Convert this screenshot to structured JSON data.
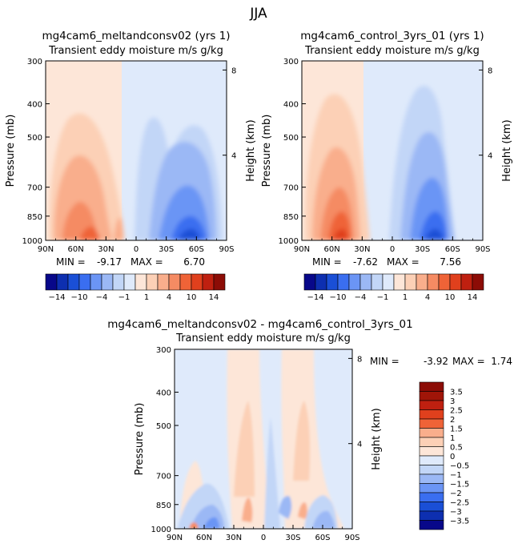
{
  "page": {
    "title": "JJA",
    "field_label": "Transient eddy moisture m/s g/kg",
    "ylabel_left": "Pressure (mb)",
    "ylabel_right": "Height (km)",
    "min_label": "MIN =",
    "max_label": "MAX ="
  },
  "colors": {
    "neg": [
      "#08088a",
      "#0d2fb0",
      "#1a4fd6",
      "#3a6ef0",
      "#6b95f5",
      "#9bb8f5",
      "#c2d6f7",
      "#dfeafb"
    ],
    "pos": [
      "#fde6d8",
      "#fcd0b6",
      "#f9ae8c",
      "#f58b63",
      "#ef6337",
      "#e0401d",
      "#bf2010",
      "#8c0c06"
    ]
  },
  "colorbar_top": {
    "tick_labels": [
      "-14",
      "-10",
      "-4",
      "-1",
      "1",
      "4",
      "10",
      "14"
    ]
  },
  "colorbar_diff": {
    "labels": [
      "3.5",
      "3",
      "2.5",
      "2",
      "1.5",
      "1",
      "0.5",
      "0",
      "-0.5",
      "-1",
      "-1.5",
      "-2",
      "-2.5",
      "-3",
      "-3.5"
    ]
  },
  "chart_data": [
    {
      "type": "contour",
      "title": "mg4cam6_meltandconsv02 (yrs 1)",
      "subtitle": "Transient eddy moisture m/s g/kg",
      "xlabel": "",
      "ylabel": "Pressure (mb)",
      "y2label": "Height (km)",
      "x_ticks": [
        "90N",
        "60N",
        "30N",
        "0",
        "30S",
        "60S",
        "90S"
      ],
      "y_ticks": [
        "300",
        "400",
        "500",
        "700",
        "850",
        "1000"
      ],
      "y2_ticks": [
        "8",
        "4"
      ],
      "xlim": [
        90,
        -90
      ],
      "ylim": [
        1000,
        300
      ],
      "min": "-9.17",
      "max": "6.70"
    },
    {
      "type": "contour",
      "title": "mg4cam6_control_3yrs_01 (yrs 1)",
      "subtitle": "Transient eddy moisture m/s g/kg",
      "xlabel": "",
      "ylabel": "Pressure (mb)",
      "y2label": "Height (km)",
      "x_ticks": [
        "90N",
        "60N",
        "30N",
        "0",
        "30S",
        "60S",
        "90S"
      ],
      "y_ticks": [
        "300",
        "400",
        "500",
        "700",
        "850",
        "1000"
      ],
      "y2_ticks": [
        "8",
        "4"
      ],
      "xlim": [
        90,
        -90
      ],
      "ylim": [
        1000,
        300
      ],
      "min": "-7.62",
      "max": "7.56"
    },
    {
      "type": "contour",
      "title": "mg4cam6_meltandconsv02 - mg4cam6_control_3yrs_01",
      "subtitle": "Transient eddy moisture m/s g/kg",
      "xlabel": "",
      "ylabel": "Pressure (mb)",
      "y2label": "Height (km)",
      "x_ticks": [
        "90N",
        "60N",
        "30N",
        "0",
        "30S",
        "60S",
        "90S"
      ],
      "y_ticks": [
        "300",
        "400",
        "500",
        "700",
        "850",
        "1000"
      ],
      "y2_ticks": [
        "8",
        "4"
      ],
      "xlim": [
        90,
        -90
      ],
      "ylim": [
        1000,
        300
      ],
      "min": "-3.92",
      "max": "1.74"
    }
  ]
}
